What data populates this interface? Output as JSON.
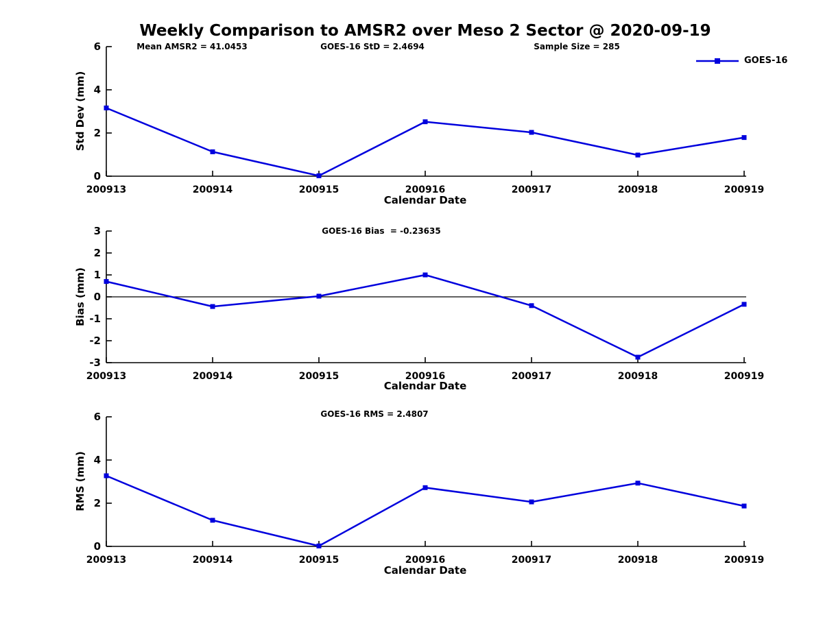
{
  "figure": {
    "title": "Weekly Comparison to AMSR2 over Meso 2 Sector @ 2020-09-19",
    "legend": {
      "label": "GOES-16"
    },
    "line_color": "#0000dd",
    "axis_color": "#000000"
  },
  "chart_data": [
    {
      "type": "line",
      "panel": "std-dev",
      "annotations": [
        "Mean AMSR2 = 41.0453",
        "GOES-16 StD = 2.4694",
        "Sample Size = 285"
      ],
      "ylabel": "Std Dev (mm)",
      "xlabel": "Calendar Date",
      "categories": [
        "200913",
        "200914",
        "200915",
        "200916",
        "200917",
        "200918",
        "200919"
      ],
      "series": [
        {
          "name": "GOES-16",
          "values": [
            3.16,
            1.13,
            0.02,
            2.52,
            2.03,
            0.98,
            1.79
          ]
        }
      ],
      "ylim": [
        0,
        6
      ],
      "yticks": [
        6,
        4,
        2,
        0
      ],
      "zero_line": false,
      "grid": false,
      "legend_position": "top-right"
    },
    {
      "type": "line",
      "panel": "bias",
      "annotations": [
        "GOES-16 Bias  = -0.23635"
      ],
      "ylabel": "Bias (mm)",
      "xlabel": "Calendar Date",
      "categories": [
        "200913",
        "200914",
        "200915",
        "200916",
        "200917",
        "200918",
        "200919"
      ],
      "series": [
        {
          "name": "GOES-16",
          "values": [
            0.7,
            -0.44,
            0.03,
            1.0,
            -0.4,
            -2.75,
            -0.34
          ]
        }
      ],
      "ylim": [
        -3,
        3
      ],
      "yticks": [
        3,
        2,
        1,
        0,
        -1,
        -2,
        -3
      ],
      "zero_line": true,
      "grid": false
    },
    {
      "type": "line",
      "panel": "rms",
      "annotations": [
        "GOES-16 RMS = 2.4807"
      ],
      "ylabel": "RMS (mm)",
      "xlabel": "Calendar Date",
      "categories": [
        "200913",
        "200914",
        "200915",
        "200916",
        "200917",
        "200918",
        "200919"
      ],
      "series": [
        {
          "name": "GOES-16",
          "values": [
            3.27,
            1.21,
            0.02,
            2.72,
            2.06,
            2.93,
            1.87
          ]
        }
      ],
      "ylim": [
        0,
        6
      ],
      "yticks": [
        6,
        4,
        2,
        0
      ],
      "zero_line": false,
      "grid": false
    }
  ]
}
